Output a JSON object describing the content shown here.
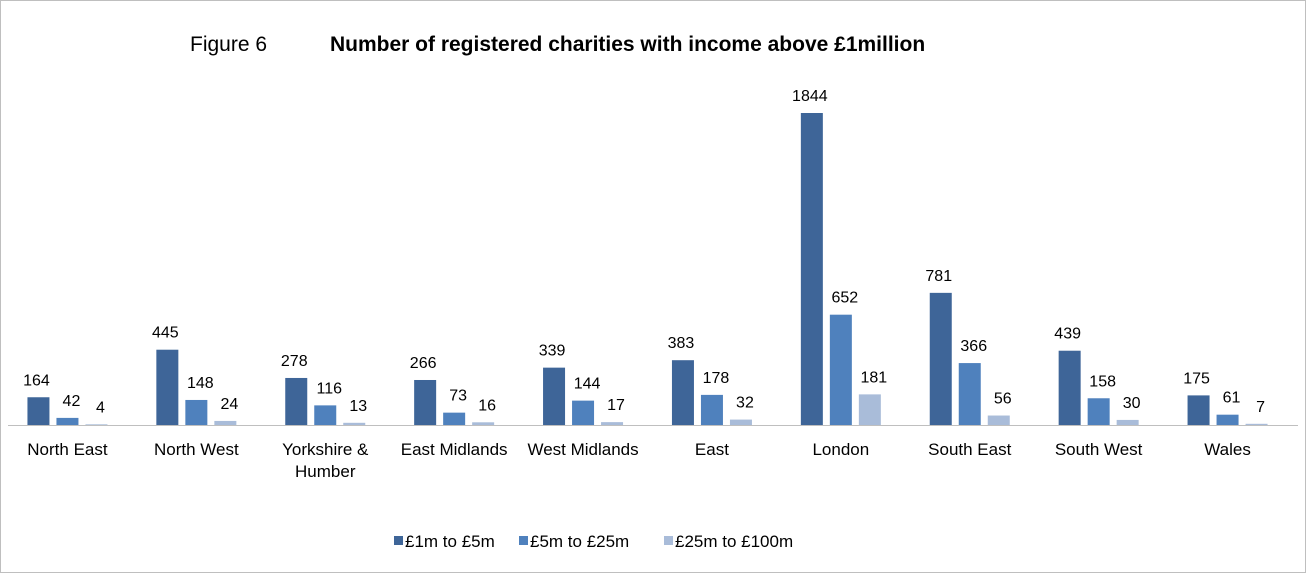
{
  "chart_data": {
    "type": "bar",
    "title_prefix": "Figure 6",
    "title": "Number of registered charities with income above £1million",
    "categories": [
      "North East",
      "North West",
      "Yorkshire & Humber",
      "East Midlands",
      "West Midlands",
      "East",
      "London",
      "South East",
      "South West",
      "Wales"
    ],
    "series": [
      {
        "name": "£1m to £5m",
        "color": "#3e6598",
        "values": [
          164,
          445,
          278,
          266,
          339,
          383,
          1844,
          781,
          439,
          175
        ]
      },
      {
        "name": "£5m to £25m",
        "color": "#4f81bd",
        "values": [
          42,
          148,
          116,
          73,
          144,
          178,
          652,
          366,
          158,
          61
        ]
      },
      {
        "name": "£25m to £100m",
        "color": "#a9bcd9",
        "values": [
          4,
          24,
          13,
          16,
          17,
          32,
          181,
          56,
          30,
          7
        ]
      }
    ],
    "legend": "bottom"
  }
}
